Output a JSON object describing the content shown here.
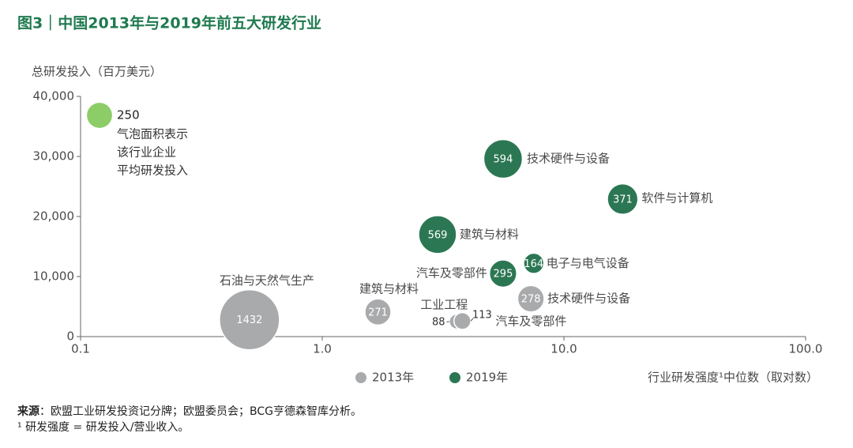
{
  "chart_data": {
    "type": "scatter",
    "title": "图3｜中国2013年与2019年前五大研发行业",
    "y_label": "总研发投入（百万美元）",
    "x_label": "行业研发强度¹中位数（取对数）",
    "x_log": true,
    "xlim": [
      0.1,
      100
    ],
    "xticks": [
      0.1,
      {
        "value": 1,
        "label": "1.0"
      },
      {
        "value": 10,
        "label": "10.0"
      },
      {
        "value": 100,
        "label": "100.0"
      }
    ],
    "ylim": [
      0,
      40000
    ],
    "yticks": [
      0,
      {
        "value": 10000,
        "label": "10,000"
      },
      {
        "value": 20000,
        "label": "20,000"
      },
      {
        "value": 30000,
        "label": "30,000"
      },
      {
        "value": 40000,
        "label": "40,000"
      }
    ],
    "series": [
      {
        "name": "2013年",
        "color": "#a9aaac",
        "labels": [
          "石油与天然气生产",
          "建筑与材料",
          "工业工程",
          "汽车及零部件",
          "技术硬件与设备"
        ],
        "x": [
          0.5,
          1.7,
          3.6,
          3.8,
          7.3
        ],
        "values": [
          2800,
          4100,
          2500,
          2600,
          6300
        ],
        "sizes": [
          1432,
          271,
          88,
          113,
          278
        ]
      },
      {
        "name": "2019年",
        "color": "#2c7753",
        "labels": [
          "技术硬件与设备",
          "软件与计算机",
          "建筑与材料",
          "汽车及零部件",
          "电子与电气设备"
        ],
        "x": [
          5.6,
          17.5,
          3.0,
          5.6,
          7.5
        ],
        "values": [
          29600,
          22900,
          17000,
          10500,
          12200
        ],
        "sizes": [
          594,
          371,
          569,
          295,
          164
        ]
      }
    ],
    "size_key": {
      "value": 250,
      "color": "#8ccd67",
      "text": [
        "气泡面积表示",
        "该行业企业",
        "平均研发投入"
      ]
    },
    "source_label": "来源",
    "source_text": "：欧盟工业研发投资记分牌；欧盟委员会；BCG亨德森智库分析。",
    "footnote": "¹ 研发强度 = 研发投入/营业收入。"
  }
}
